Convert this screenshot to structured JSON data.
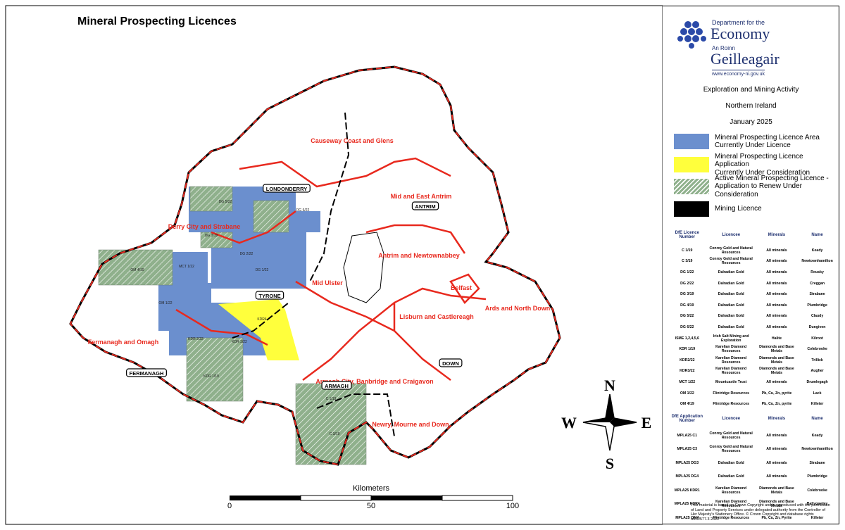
{
  "title": "Mineral Prospecting Licences",
  "map": {
    "districts": [
      "Causeway Coast and Glens",
      "Mid and East Antrim",
      "Derry City and Strabane",
      "Antrim and Newtownabbey",
      "Mid Ulster",
      "Belfast",
      "Ards and North Down",
      "Lisburn and Castlereagh",
      "Fermanagh and Omagh",
      "Armagh City, Banbridge and Craigavon",
      "Newry, Mourne and Down"
    ],
    "counties": [
      "LONDONDERRY",
      "ANTRIM",
      "TYRONE",
      "FERMANAGH",
      "ARMAGH",
      "DOWN"
    ],
    "licence_labels": [
      "DG 5/22",
      "DG 6/22",
      "DG 3/19",
      "MCT 1/22",
      "OM 4/19",
      "DG 2/22",
      "DG 1/22",
      "OM 1/22",
      "KDR4",
      "KDR 2/22",
      "KDR 3/22",
      "KDR 1/19",
      "C 1/19",
      "C 3/19"
    ]
  },
  "scale": {
    "title": "Kilometers",
    "labels": [
      0,
      50,
      100
    ]
  },
  "compass": {
    "n": "N",
    "e": "E",
    "s": "S",
    "w": "W"
  },
  "logo": {
    "line1": "Department for the",
    "line2": "Economy",
    "line3": "An Roinn",
    "line4": "Geilleagair",
    "url": "www.economy-ni.gov.uk"
  },
  "headings": [
    "Exploration and Mining Activity",
    "Northern Ireland",
    "January 2025"
  ],
  "legend": [
    {
      "lines": [
        "Mineral Prospecting Licence Area",
        "Currently Under Licence"
      ],
      "color": "#6b8fce",
      "style": "solid"
    },
    {
      "lines": [
        "Mineral Prospecting Licence Application",
        "Currently Under Consideration"
      ],
      "color": "#ffff3c",
      "style": "solid"
    },
    {
      "lines": [
        "Active Mineral Prospecting Licence -",
        "Application to Renew Under Consideration"
      ],
      "color": "#8fb08c",
      "style": "hatched"
    },
    {
      "lines": [
        "Mining Licence"
      ],
      "color": "#000000",
      "style": "solid"
    }
  ],
  "licences": {
    "columns": [
      "DfE Licence Number",
      "Licencee",
      "Minerals",
      "Name"
    ],
    "rows": [
      [
        "C 1/19",
        "Conroy Gold and Natural Resources",
        "All minerals",
        "Keady"
      ],
      [
        "C 3/19",
        "Conroy Gold and Natural Resources",
        "All minerals",
        "Newtownhamilton"
      ],
      [
        "DG 1/22",
        "Dalradian Gold",
        "All minerals",
        "Rousky"
      ],
      [
        "DG 2/22",
        "Dalradian Gold",
        "All minerals",
        "Creggan"
      ],
      [
        "DG 3/19",
        "Dalradian Gold",
        "All minerals",
        "Strabane"
      ],
      [
        "DG 4/19",
        "Dalradian Gold",
        "All minerals",
        "Plumbridge"
      ],
      [
        "DG 5/22",
        "Dalradian Gold",
        "All minerals",
        "Claudy"
      ],
      [
        "DG 6/22",
        "Dalradian Gold",
        "All minerals",
        "Dungiven"
      ],
      [
        "ISME 1,2,4,5,6",
        "Irish Salt Mining and Exploration",
        "Halite",
        "Kilroot"
      ],
      [
        "KDR 1/19",
        "Karelian Diamond Resources",
        "Diamonds and Base Metals",
        "Colebrooke"
      ],
      [
        "KDR2/22",
        "Karelian Diamond Resources",
        "Diamonds and Base Metals",
        "Trillick"
      ],
      [
        "KDR3/22",
        "Karelian Diamond Resources",
        "Diamonds and Base Metals",
        "Augher"
      ],
      [
        "MCT 1/22",
        "Mountcastle Trust",
        "All minerals",
        "Drumlegagh"
      ],
      [
        "OM 1/22",
        "Flintridge Resources",
        "Pb, Cu, Zn, pyrite",
        "Lack"
      ],
      [
        "OM 4/19",
        "Flintridge Resources",
        "Pb, Cu, Zn, pyrite",
        "Killeter"
      ]
    ]
  },
  "applications": {
    "columns": [
      "DfE Application Number",
      "Licencee",
      "Minerals",
      "Name"
    ],
    "rows": [
      [
        "MPLA25 C1",
        "Conroy Gold and Natural Resources",
        "All minerals",
        "Keady"
      ],
      [
        "MPLA25 C3",
        "Conroy Gold and Natural Resources",
        "All minerals",
        "Newtownhamilton"
      ],
      [
        "MPLA25 DG3",
        "Dalradian Gold",
        "All minerals",
        "Strabane"
      ],
      [
        "MPLA25 DG4",
        "Dalradian Gold",
        "All minerals",
        "Plumbridge"
      ],
      [
        "MPLA25 KDR1",
        "Karelian Diamond Resources",
        "Diamonds and Base Metals",
        "Colebrooke"
      ],
      [
        "MPLA25 KDR4",
        "Karelian Diamond Resources",
        "Diamonds and Base Metals",
        "Ballygawley"
      ],
      [
        "MPLA25 OM4",
        "Flintridge Resources",
        "Pb, Cu, Zn, Pyrite",
        "Killeter"
      ]
    ]
  },
  "footnote": "This material is based on Crown Copyright and is reproduced with the permission of Land and Property Services under delegated authority from the Controller of Her Majesty's Stationery Office. © Crown Copyright and database rights MOU577.3 2022"
}
